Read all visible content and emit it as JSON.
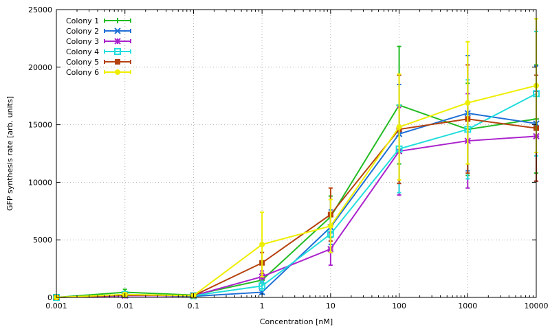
{
  "chart_data": {
    "type": "line",
    "xlabel": "Concentration [nM]",
    "ylabel": "GFP synthesis rate [arb. units]",
    "xscale": "log",
    "xlim": [
      0.001,
      10000
    ],
    "ylim": [
      0,
      25000
    ],
    "x": [
      0.001,
      0.01,
      0.1,
      1,
      10,
      100,
      1000,
      10000
    ],
    "x_tick_labels": [
      "0.001",
      "0.01",
      "0.1",
      "1",
      "10",
      "100",
      "1000",
      "10000"
    ],
    "y_ticks": [
      0,
      5000,
      10000,
      15000,
      20000,
      25000
    ],
    "y_tick_labels": [
      "0",
      "5000",
      "10000",
      "15000",
      "20000",
      "25000"
    ],
    "grid": true,
    "legend_position": "top-left",
    "series": [
      {
        "name": "Colony 1",
        "color": "#22bb22",
        "marker": "plus",
        "values": [
          0,
          450,
          200,
          1500,
          7000,
          16700,
          14600,
          15500
        ],
        "errors": [
          0,
          250,
          100,
          300,
          1800,
          5100,
          4000,
          4700
        ]
      },
      {
        "name": "Colony 2",
        "color": "#1f6fd6",
        "marker": "cross",
        "values": [
          0,
          200,
          100,
          450,
          6100,
          14200,
          16000,
          15100
        ],
        "errors": [
          0,
          100,
          50,
          150,
          1500,
          4300,
          5000,
          5000
        ]
      },
      {
        "name": "Colony 3",
        "color": "#aa22cc",
        "marker": "star",
        "values": [
          0,
          150,
          150,
          1800,
          4200,
          12700,
          13600,
          14000
        ],
        "errors": [
          0,
          80,
          80,
          500,
          1400,
          3800,
          4100,
          3900
        ]
      },
      {
        "name": "Colony 4",
        "color": "#22dddd",
        "marker": "open-square",
        "values": [
          0,
          250,
          150,
          1000,
          5500,
          12900,
          14600,
          17700
        ],
        "errors": [
          0,
          120,
          80,
          400,
          1600,
          3800,
          4300,
          5400
        ]
      },
      {
        "name": "Colony 5",
        "color": "#b5420e",
        "marker": "filled-square",
        "values": [
          0,
          200,
          150,
          3000,
          7200,
          14600,
          15500,
          14700
        ],
        "errors": [
          0,
          100,
          80,
          900,
          2300,
          4700,
          4700,
          4600
        ]
      },
      {
        "name": "Colony 6",
        "color": "#eeee00",
        "marker": "filled-circle",
        "values": [
          0,
          250,
          150,
          4600,
          6200,
          14800,
          16900,
          18400
        ],
        "errors": [
          0,
          150,
          100,
          2800,
          2300,
          4600,
          5300,
          5800
        ]
      }
    ]
  }
}
